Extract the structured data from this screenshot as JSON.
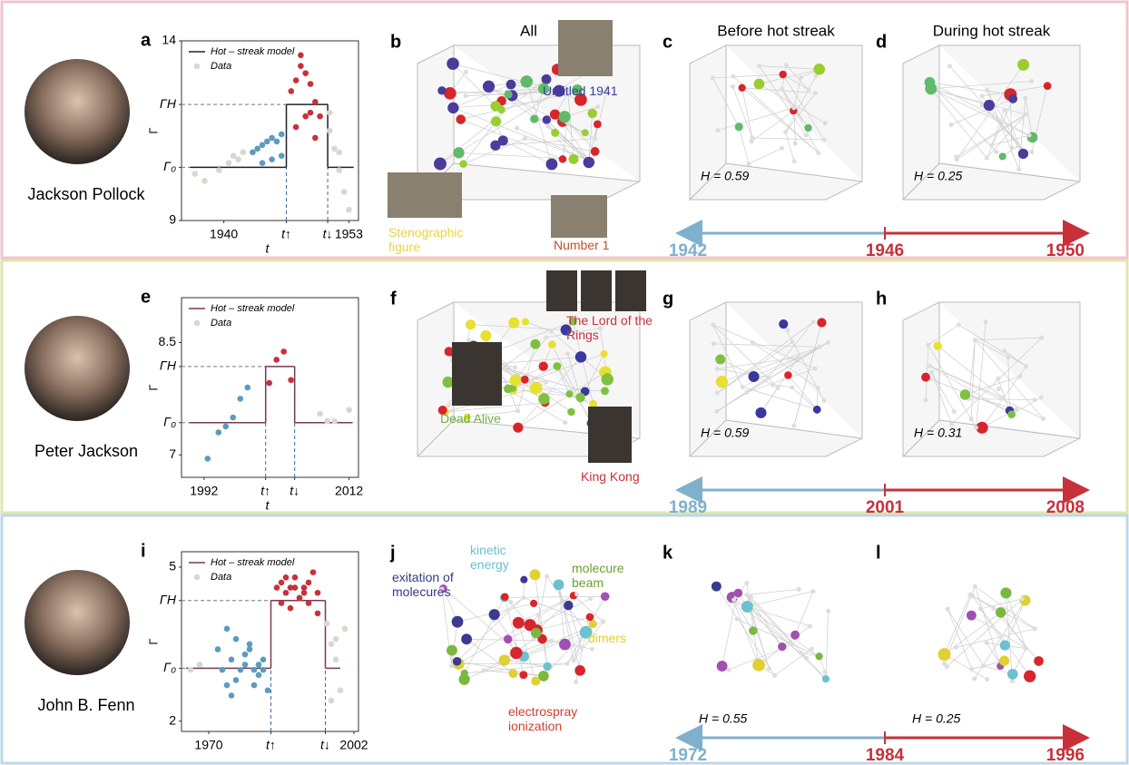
{
  "rows": [
    {
      "person": "Jackson Pollock",
      "chart": {
        "panel": "a",
        "legend": [
          "Hot – streak model",
          "Data"
        ],
        "ylabel": "Γ",
        "xlabel": "t",
        "xlim": [
          1935.6,
          1954
        ],
        "ylim": [
          9,
          14
        ],
        "xticks": [
          1940,
          {
            "value": 1946.5,
            "label": "t↑"
          },
          {
            "value": 1950.8,
            "label": "t↓"
          },
          1953
        ],
        "yticks": [
          9,
          {
            "value": 10.48,
            "label": "Γ₀"
          },
          {
            "value": 12.23,
            "label": "ΓH"
          },
          14
        ],
        "model": {
          "breaks": [
            1936.5,
            1946.5,
            1950.8,
            1953.5
          ],
          "levels": [
            10.48,
            12.23,
            10.48
          ],
          "color": "#222222"
        },
        "points": [
          {
            "color": "#d8d8cc",
            "x": [
              1937,
              1938,
              1939.5,
              1940.5,
              1941,
              1941.5,
              1942
            ],
            "y": [
              10.3,
              10.1,
              10.4,
              10.6,
              10.8,
              10.7,
              10.9
            ]
          },
          {
            "color": "#5b9bbf",
            "x": [
              1943,
              1943.5,
              1944,
              1944.5,
              1945,
              1945.5,
              1946,
              1944,
              1945,
              1946
            ],
            "y": [
              10.9,
              11.0,
              11.1,
              11.2,
              11.3,
              11.2,
              11.4,
              10.6,
              10.7,
              10.8
            ]
          },
          {
            "color": "#c8303a",
            "x": [
              1947,
              1947.5,
              1948,
              1948.5,
              1949,
              1949.5,
              1950,
              1947.5,
              1948.5,
              1949.5,
              1948,
              1949
            ],
            "y": [
              12.6,
              12.9,
              13.3,
              13.1,
              12.8,
              12.3,
              11.9,
              11.6,
              11.9,
              11.3,
              13.6,
              12.0
            ]
          },
          {
            "color": "#d8d8cc",
            "x": [
              1951,
              1951.5,
              1952,
              1952.5,
              1951,
              1952,
              1953
            ],
            "y": [
              11.5,
              11.0,
              10.4,
              9.8,
              12.0,
              10.9,
              9.3
            ]
          }
        ]
      },
      "panels": [
        {
          "letter": "b",
          "title": "All"
        },
        {
          "letter": "c",
          "title": "Before hot streak",
          "H": "H = 0.59"
        },
        {
          "letter": "d",
          "title": "During hot streak",
          "H": "H = 0.25"
        }
      ],
      "annotations": [
        {
          "text": "Untitled 1941",
          "color": "#3a3aa0"
        },
        {
          "text": "Stenographic figure",
          "color": "#e6d440"
        },
        {
          "text": "Number 1",
          "color": "#c05030"
        }
      ],
      "timeline": [
        1942,
        1946,
        1950
      ]
    },
    {
      "person": "Peter Jackson",
      "chart": {
        "panel": "e",
        "legend": [
          "Hot – streak model",
          "Data"
        ],
        "ylabel": "Γ",
        "xlabel": "t",
        "xlim": [
          1988.9,
          2013.3
        ],
        "ylim": [
          6.7,
          9.1
        ],
        "xticks": [
          1992,
          {
            "value": 2000.5,
            "label": "t↑"
          },
          {
            "value": 2004.5,
            "label": "t↓"
          },
          2012
        ],
        "yticks": [
          7,
          {
            "value": 7.43,
            "label": "Γ₀"
          },
          {
            "value": 8.18,
            "label": "ΓH"
          },
          8.5
        ],
        "model": {
          "breaks": [
            1990,
            2000.5,
            2004.5,
            2012.5
          ],
          "levels": [
            7.43,
            8.18,
            7.43
          ],
          "color": "#7a3a50"
        },
        "points": [
          {
            "color": "#5b9bbf",
            "x": [
              1992.5,
              1994,
              1995,
              1996,
              1997,
              1998
            ],
            "y": [
              6.95,
              7.3,
              7.38,
              7.5,
              7.75,
              7.9
            ]
          },
          {
            "color": "#c8303a",
            "x": [
              2001,
              2002,
              2003,
              2004
            ],
            "y": [
              7.96,
              8.27,
              8.38,
              8.0
            ]
          },
          {
            "color": "#d8d8cc",
            "x": [
              2008,
              2009,
              2010,
              2012
            ],
            "y": [
              7.55,
              7.45,
              7.45,
              7.6
            ]
          }
        ]
      },
      "panels": [
        {
          "letter": "f"
        },
        {
          "letter": "g",
          "H": "H = 0.59"
        },
        {
          "letter": "h",
          "H": "H = 0.31"
        }
      ],
      "annotations": [
        {
          "text": "The Lord of the Rings",
          "color": "#c8303a"
        },
        {
          "text": "Dead Alive",
          "color": "#6fb040"
        },
        {
          "text": "King Kong",
          "color": "#c8303a"
        }
      ],
      "timeline": [
        1989,
        2001,
        2008
      ]
    },
    {
      "person": "John B. Fenn",
      "chart": {
        "panel": "i",
        "legend": [
          "Hot – streak model",
          "Data"
        ],
        "ylabel": "Γ",
        "xlim": [
          1964,
          2003
        ],
        "ylim": [
          1.8,
          5.3
        ],
        "xticks": [
          1970,
          {
            "value": 1983.7,
            "label": "t↑"
          },
          {
            "value": 1995.7,
            "label": "t↓"
          },
          2002
        ],
        "yticks": [
          2,
          {
            "value": 3.03,
            "label": "Γ₀"
          },
          {
            "value": 4.35,
            "label": "ΓH"
          },
          5
        ],
        "model": {
          "breaks": [
            1965,
            1983.7,
            1995.7,
            1999
          ],
          "levels": [
            3.03,
            4.35,
            3.03
          ],
          "color": "#7a3a50"
        },
        "points": [
          {
            "color": "#d8d8cc",
            "x": [
              1966,
              1968
            ],
            "y": [
              3.0,
              3.1
            ]
          },
          {
            "color": "#5b9bbf",
            "x": [
              1972,
              1973,
              1974,
              1975,
              1976,
              1977,
              1978,
              1979,
              1980,
              1981,
              1982,
              1983,
              1974,
              1976,
              1978,
              1980,
              1982,
              1975,
              1979,
              1981
            ],
            "y": [
              3.4,
              3.0,
              2.7,
              3.2,
              2.8,
              3.0,
              3.1,
              3.5,
              3.0,
              2.9,
              3.2,
              2.6,
              3.8,
              3.6,
              3.3,
              2.7,
              3.0,
              2.5,
              3.4,
              3.1
            ]
          },
          {
            "color": "#c8303a",
            "x": [
              1985,
              1986,
              1987,
              1988,
              1989,
              1990,
              1991,
              1992,
              1993,
              1994,
              1986,
              1988,
              1990,
              1992,
              1994,
              1987,
              1989,
              1991
            ],
            "y": [
              4.6,
              4.7,
              4.5,
              4.6,
              4.8,
              4.4,
              4.6,
              4.7,
              4.9,
              4.5,
              4.3,
              4.2,
              4.4,
              4.3,
              4.1,
              4.8,
              4.6,
              4.5
            ]
          },
          {
            "color": "#d8d8cc",
            "x": [
              1996,
              1997,
              1998,
              1999,
              1997,
              1998,
              2000
            ],
            "y": [
              3.9,
              3.5,
              3.2,
              2.6,
              2.4,
              3.6,
              3.8
            ]
          }
        ]
      },
      "panels": [
        {
          "letter": "j"
        },
        {
          "letter": "k",
          "H": "H = 0.55"
        },
        {
          "letter": "l",
          "H": "H = 0.25"
        }
      ],
      "annotations": [
        {
          "text": "kinetic energy",
          "color": "#6cc0d0"
        },
        {
          "text": "exitation of molecures",
          "color": "#333a88"
        },
        {
          "text": "molecure beam",
          "color": "#6aa030"
        },
        {
          "text": "dimers",
          "color": "#e0d030"
        },
        {
          "text": "electrospray ionization",
          "color": "#d04030"
        }
      ],
      "timeline": [
        1972,
        1984,
        1996
      ]
    }
  ]
}
